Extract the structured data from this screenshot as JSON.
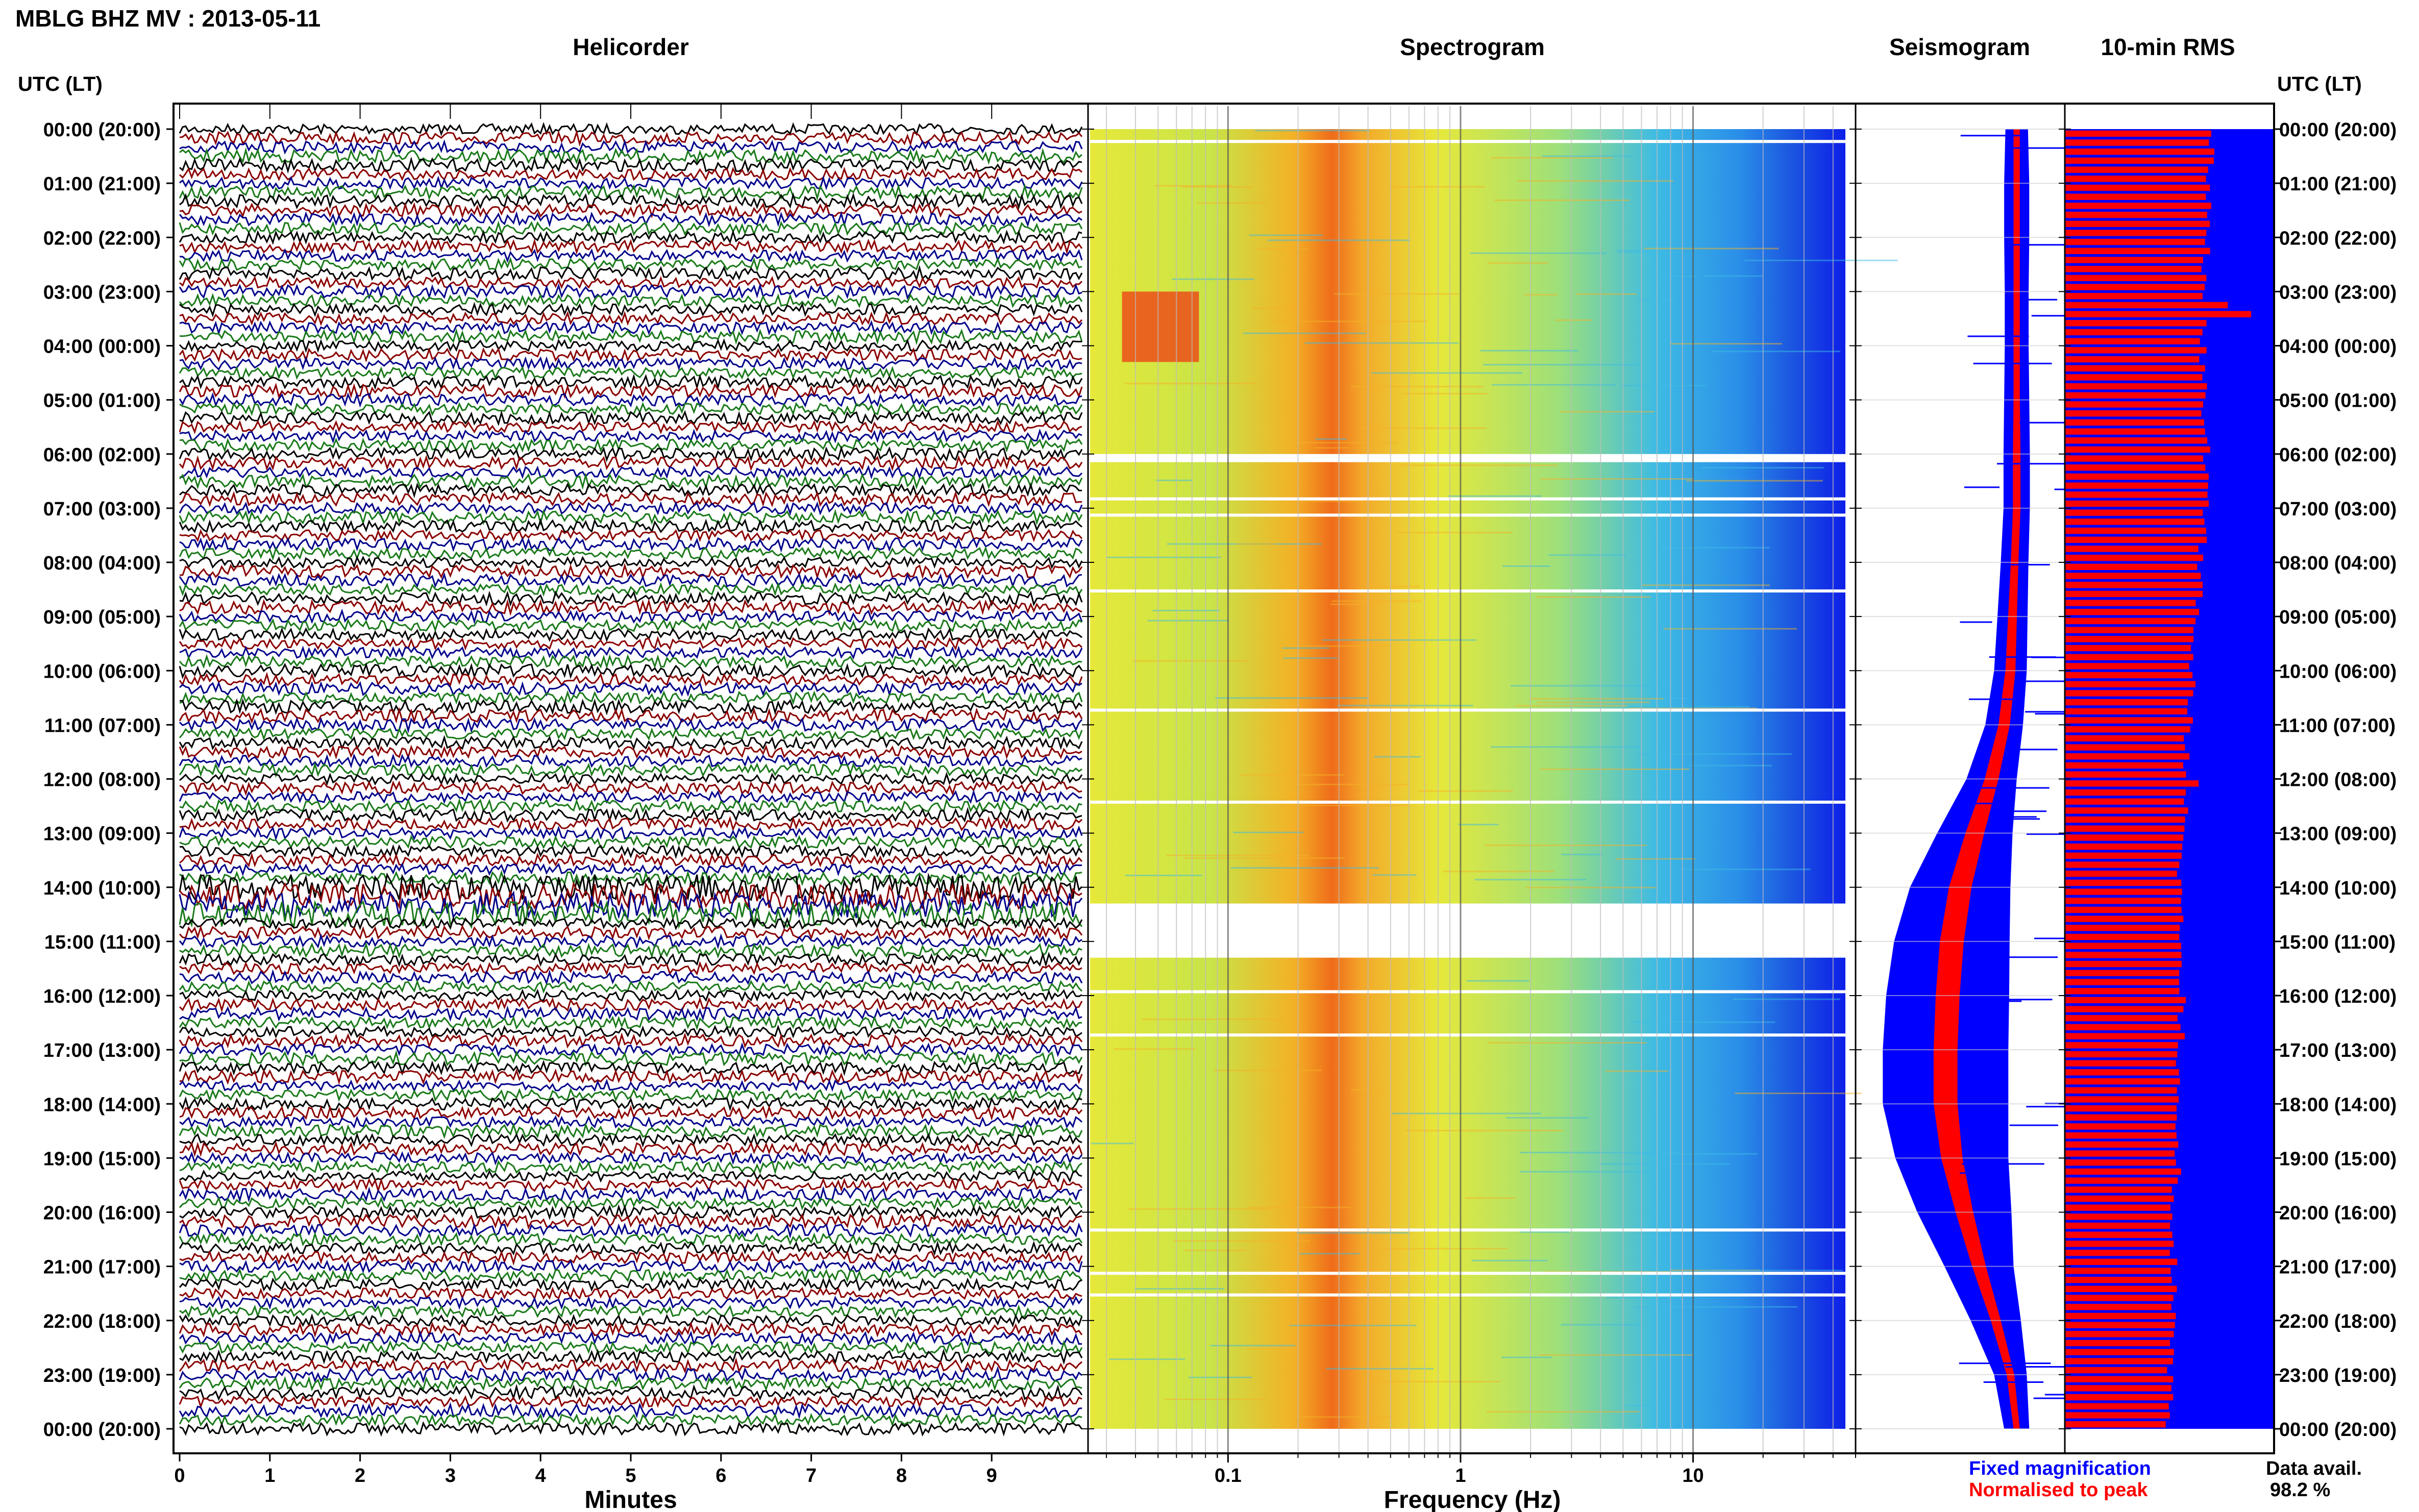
{
  "figure": {
    "title": "MBLG BHZ MV : 2013-05-11",
    "data_avail_label": "Data avail.",
    "data_avail_value": "98.2 %",
    "legend_fixed": "Fixed magnification",
    "legend_normalised": "Normalised to peak",
    "colors": {
      "trace_cycle": [
        "#000000",
        "#8b0000",
        "#00008b",
        "#1a7a1a"
      ],
      "fixed": "#0000ff",
      "normalised": "#ff0000"
    }
  },
  "time_axis": {
    "title_left": "UTC (LT)",
    "title_right": "UTC (LT)",
    "labels": [
      "00:00 (20:00)",
      "01:00 (21:00)",
      "02:00 (22:00)",
      "03:00 (23:00)",
      "04:00 (00:00)",
      "05:00 (01:00)",
      "06:00 (02:00)",
      "07:00 (03:00)",
      "08:00 (04:00)",
      "09:00 (05:00)",
      "10:00 (06:00)",
      "11:00 (07:00)",
      "12:00 (08:00)",
      "13:00 (09:00)",
      "14:00 (10:00)",
      "15:00 (11:00)",
      "16:00 (12:00)",
      "17:00 (13:00)",
      "18:00 (14:00)",
      "19:00 (15:00)",
      "20:00 (16:00)",
      "21:00 (17:00)",
      "22:00 (18:00)",
      "23:00 (19:00)",
      "00:00 (20:00)"
    ]
  },
  "chart_data": [
    {
      "type": "line",
      "title": "Helicorder",
      "xlabel": "Minutes",
      "xlim": [
        0,
        10
      ],
      "x_ticks": [
        "0",
        "1",
        "2",
        "3",
        "4",
        "5",
        "6",
        "7",
        "8",
        "9"
      ],
      "rows_per_hour": 6,
      "row_minutes": 10,
      "total_rows": 144,
      "noisy_rows": [
        84,
        85,
        86,
        87
      ]
    },
    {
      "type": "heatmap",
      "title": "Spectrogram",
      "xlabel": "Frequency (Hz)",
      "x_scale": "log",
      "xlim": [
        0.025,
        50
      ],
      "x_ticks": [
        "0.1",
        "1",
        "10"
      ],
      "peak_band_hz": [
        0.25,
        0.45
      ],
      "gaps_hours": [
        [
          6.0,
          6.15
        ],
        [
          14.3,
          15.3
        ]
      ]
    },
    {
      "type": "line",
      "title": "Seismogram",
      "series": [
        {
          "name": "Fixed magnification"
        },
        {
          "name": "Normalised to peak"
        }
      ],
      "hours": [
        0,
        1,
        2,
        3,
        4,
        5,
        6,
        7,
        8,
        9,
        10,
        11,
        12,
        13,
        14,
        15,
        16,
        17,
        18,
        19,
        20,
        21,
        22,
        23,
        24
      ],
      "fixed_halfwidth": [
        0.18,
        0.2,
        0.2,
        0.19,
        0.19,
        0.2,
        0.21,
        0.21,
        0.22,
        0.24,
        0.26,
        0.3,
        0.4,
        0.6,
        0.8,
        0.92,
        0.98,
        1.0,
        1.0,
        0.9,
        0.75,
        0.55,
        0.4,
        0.26,
        0.2
      ],
      "normalised_halfwidth": [
        0.05,
        0.05,
        0.05,
        0.05,
        0.05,
        0.05,
        0.06,
        0.06,
        0.06,
        0.07,
        0.08,
        0.09,
        0.11,
        0.15,
        0.18,
        0.19,
        0.19,
        0.19,
        0.19,
        0.17,
        0.14,
        0.11,
        0.08,
        0.06,
        0.05
      ],
      "center_offset": [
        0.15,
        0.15,
        0.15,
        0.15,
        0.15,
        0.15,
        0.15,
        0.15,
        0.14,
        0.13,
        0.12,
        0.09,
        0.03,
        -0.05,
        -0.12,
        -0.16,
        -0.18,
        -0.19,
        -0.19,
        -0.16,
        -0.1,
        -0.03,
        0.05,
        0.12,
        0.15
      ]
    },
    {
      "type": "bar",
      "title": "10-min RMS",
      "orientation": "horizontal",
      "hours": [
        0,
        1,
        2,
        3,
        4,
        5,
        6,
        7,
        8,
        9,
        10,
        11,
        12,
        13,
        14,
        15,
        16,
        17,
        18,
        19,
        20,
        21,
        22,
        23,
        24
      ],
      "rms_fraction": [
        0.7,
        0.69,
        0.68,
        0.66,
        0.66,
        0.67,
        0.68,
        0.67,
        0.65,
        0.63,
        0.61,
        0.59,
        0.58,
        0.56,
        0.55,
        0.55,
        0.56,
        0.55,
        0.54,
        0.54,
        0.52,
        0.52,
        0.51,
        0.5,
        0.5
      ]
    }
  ]
}
